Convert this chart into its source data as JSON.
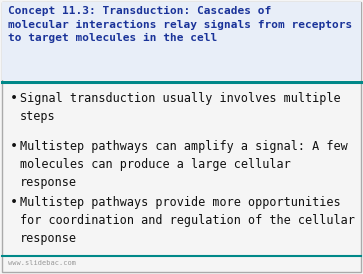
{
  "title_line1": "Concept 11.3: Transduction: Cascades of",
  "title_line2": "molecular interactions relay signals from receptors",
  "title_line3": "to target molecules in the cell",
  "title_color": "#1a3399",
  "bg_color": "#f5f5f5",
  "border_color": "#aaaaaa",
  "divider_color": "#008888",
  "title_bg_color": "#e8eef8",
  "bullet_points": [
    "Signal transduction usually involves multiple\nsteps",
    "Multistep pathways can amplify a signal: A few\nmolecules can produce a large cellular\nresponse",
    "Multistep pathways provide more opportunities\nfor coordination and regulation of the cellular\nresponse"
  ],
  "bullet_color": "#111111",
  "bullet_fontsize": 8.5,
  "title_fontsize": 8.0,
  "footer_text": "www.slidebac.com",
  "footer_color": "#999999",
  "footer_fontsize": 5.0,
  "fig_width": 3.63,
  "fig_height": 2.74,
  "dpi": 100
}
